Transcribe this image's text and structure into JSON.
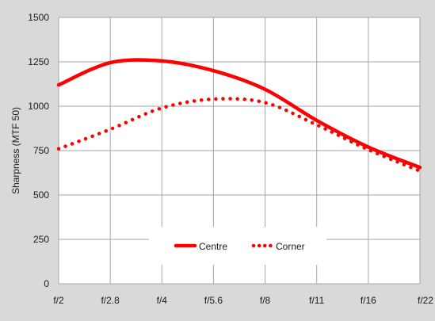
{
  "chart_data": {
    "type": "line",
    "title": "",
    "xlabel": "",
    "ylabel": "Sharpness (MTF 50)",
    "categories": [
      "f/2",
      "f/2.8",
      "f/4",
      "f/5.6",
      "f/8",
      "f/11",
      "f/16",
      "f/22"
    ],
    "ylim": [
      0,
      1500
    ],
    "yticks": [
      0,
      250,
      500,
      750,
      1000,
      1250,
      1500
    ],
    "grid": true,
    "legend_position": "bottom-center",
    "series": [
      {
        "name": "Centre",
        "style": "solid",
        "color": "#ff0000",
        "values": [
          1120,
          1245,
          1255,
          1200,
          1095,
          920,
          770,
          655
        ]
      },
      {
        "name": "Corner",
        "style": "dotted",
        "color": "#ff0000",
        "values": [
          760,
          870,
          990,
          1040,
          1020,
          895,
          755,
          635
        ]
      }
    ]
  },
  "colors": {
    "background": "#d9d9d9",
    "plot_background": "#ffffff",
    "gridline": "#a6a6a6",
    "series": "#ff0000"
  }
}
